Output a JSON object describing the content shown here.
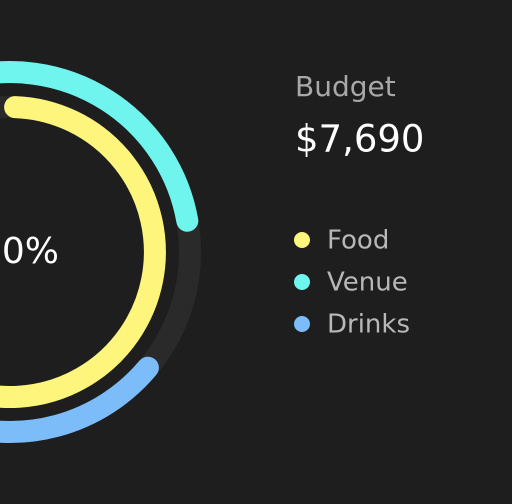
{
  "budget": {
    "label": "Budget",
    "amount": "$7,690"
  },
  "center_label": "0%",
  "legend": [
    {
      "label": "Food",
      "color": "#fdf57c"
    },
    {
      "label": "Venue",
      "color": "#6ff5ee"
    },
    {
      "label": "Drinks",
      "color": "#7cbcf8"
    }
  ]
}
